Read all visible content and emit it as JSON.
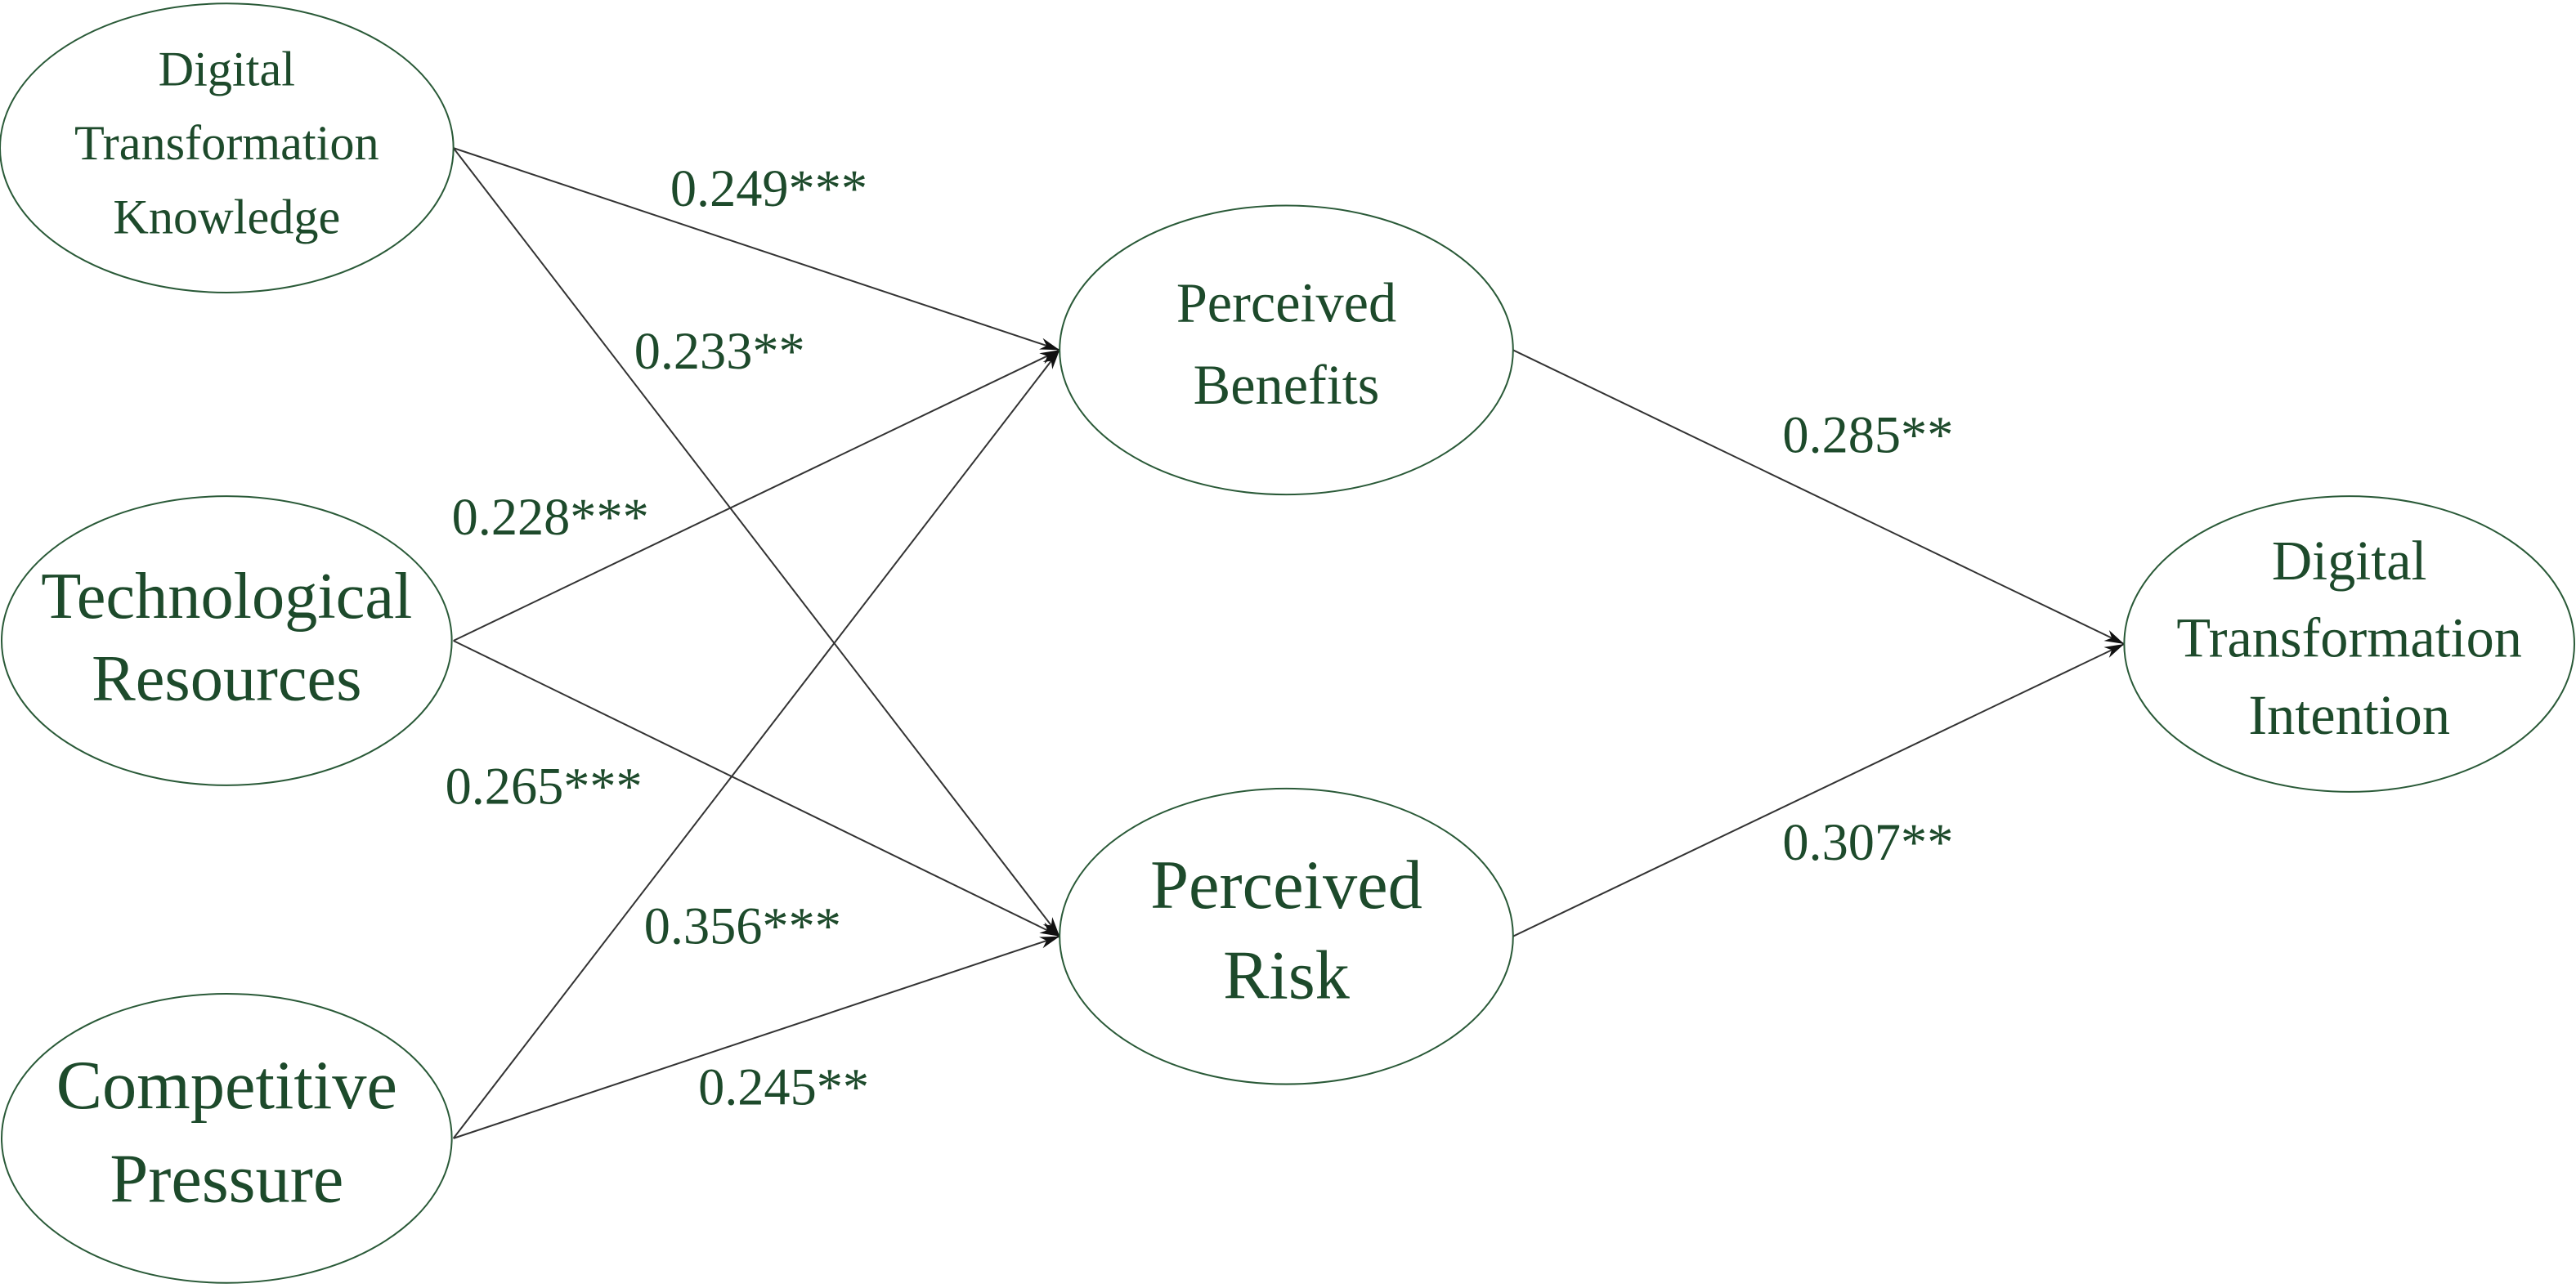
{
  "nodes": [
    {
      "lines": [
        "Digital",
        "Transformation",
        "Knowledge"
      ]
    },
    {
      "lines": [
        "Technological",
        "Resources"
      ]
    },
    {
      "lines": [
        "Competitive",
        "Pressure"
      ]
    },
    {
      "lines": [
        "Perceived",
        "Benefits"
      ]
    },
    {
      "lines": [
        "Perceived",
        "Risk"
      ]
    },
    {
      "lines": [
        "Digital",
        "Transformation",
        "Intention"
      ]
    }
  ],
  "edges": [
    {
      "label": "0.249***"
    },
    {
      "label": "0.233**"
    },
    {
      "label": "0.228***"
    },
    {
      "label": "0.265***"
    },
    {
      "label": "0.356***"
    },
    {
      "label": "0.245**"
    },
    {
      "label": "0.285**"
    },
    {
      "label": "0.307**"
    }
  ]
}
